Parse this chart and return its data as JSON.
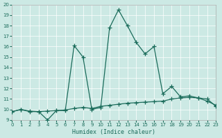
{
  "xlabel": "Humidex (Indice chaleur)",
  "xlim": [
    0,
    23
  ],
  "ylim": [
    9,
    20
  ],
  "xticks": [
    0,
    1,
    2,
    3,
    4,
    5,
    6,
    7,
    8,
    9,
    10,
    11,
    12,
    13,
    14,
    15,
    16,
    17,
    18,
    19,
    20,
    21,
    22,
    23
  ],
  "yticks": [
    9,
    10,
    11,
    12,
    13,
    14,
    15,
    16,
    17,
    18,
    19,
    20
  ],
  "bg_color": "#cce9e4",
  "line_color": "#1a6b5a",
  "series1_x": [
    0,
    1,
    2,
    3,
    4,
    5,
    6,
    7,
    8,
    9,
    10,
    11,
    12,
    13,
    14,
    15,
    16,
    17,
    18,
    19,
    20,
    21,
    22,
    23
  ],
  "series1_y": [
    9.8,
    10.0,
    9.8,
    9.8,
    9.0,
    9.9,
    9.9,
    16.1,
    15.0,
    10.0,
    10.2,
    17.8,
    19.5,
    18.0,
    16.4,
    15.3,
    16.0,
    11.5,
    12.2,
    11.2,
    11.3,
    11.1,
    11.0,
    10.3
  ],
  "series2_x": [
    0,
    1,
    2,
    3,
    4,
    5,
    6,
    7,
    8,
    9,
    10,
    11,
    12,
    13,
    14,
    15,
    16,
    17,
    18,
    19,
    20,
    21,
    22,
    23
  ],
  "series2_y": [
    9.8,
    10.0,
    9.85,
    9.8,
    9.85,
    9.9,
    9.95,
    10.1,
    10.2,
    10.1,
    10.3,
    10.4,
    10.5,
    10.6,
    10.65,
    10.7,
    10.75,
    10.8,
    11.0,
    11.1,
    11.15,
    11.1,
    10.8,
    10.4
  ],
  "marker": "+",
  "markersize": 4,
  "linewidth": 0.9
}
